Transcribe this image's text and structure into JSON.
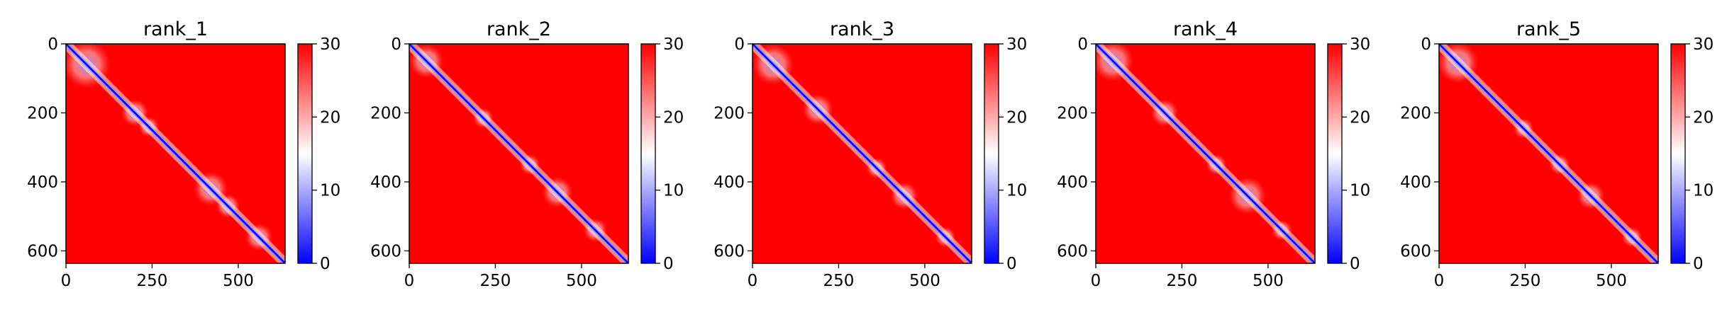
{
  "chart_data": [
    {
      "type": "heatmap",
      "title": "rank_1",
      "x_ticks": [
        0,
        250,
        500
      ],
      "y_ticks": [
        0,
        200,
        400,
        600
      ],
      "xlim": [
        0,
        636
      ],
      "ylim": [
        636,
        0
      ],
      "colorbar": {
        "ticks": [
          0,
          10,
          20,
          30
        ],
        "range": [
          0,
          30
        ],
        "colors": [
          "#0000ff",
          "#ffffff",
          "#ff0000"
        ]
      },
      "diagonal_value": 0,
      "background_value": 30,
      "low_regions": [
        [
          60,
          60,
          70
        ],
        [
          200,
          200,
          40
        ],
        [
          240,
          240,
          30
        ],
        [
          420,
          420,
          50
        ],
        [
          470,
          470,
          35
        ],
        [
          560,
          560,
          40
        ]
      ]
    },
    {
      "type": "heatmap",
      "title": "rank_2",
      "x_ticks": [
        0,
        250,
        500
      ],
      "y_ticks": [
        0,
        200,
        400,
        600
      ],
      "xlim": [
        0,
        636
      ],
      "ylim": [
        636,
        0
      ],
      "colorbar": {
        "ticks": [
          0,
          10,
          20,
          30
        ],
        "range": [
          0,
          30
        ],
        "colors": [
          "#0000ff",
          "#ffffff",
          "#ff0000"
        ]
      },
      "diagonal_value": 0,
      "background_value": 30,
      "low_regions": [
        [
          50,
          50,
          50
        ],
        [
          215,
          215,
          30
        ],
        [
          350,
          350,
          30
        ],
        [
          430,
          430,
          45
        ],
        [
          540,
          540,
          35
        ]
      ]
    },
    {
      "type": "heatmap",
      "title": "rank_3",
      "x_ticks": [
        0,
        250,
        500
      ],
      "y_ticks": [
        0,
        200,
        400,
        600
      ],
      "xlim": [
        0,
        636
      ],
      "ylim": [
        636,
        0
      ],
      "colorbar": {
        "ticks": [
          0,
          10,
          20,
          30
        ],
        "range": [
          0,
          30
        ],
        "colors": [
          "#0000ff",
          "#ffffff",
          "#ff0000"
        ]
      },
      "diagonal_value": 0,
      "background_value": 30,
      "low_regions": [
        [
          60,
          60,
          60
        ],
        [
          190,
          190,
          45
        ],
        [
          360,
          360,
          30
        ],
        [
          440,
          440,
          40
        ],
        [
          560,
          560,
          30
        ]
      ]
    },
    {
      "type": "heatmap",
      "title": "rank_4",
      "x_ticks": [
        0,
        250,
        500
      ],
      "y_ticks": [
        0,
        200,
        400,
        600
      ],
      "xlim": [
        0,
        636
      ],
      "ylim": [
        636,
        0
      ],
      "colorbar": {
        "ticks": [
          0,
          10,
          20,
          30
        ],
        "range": [
          0,
          30
        ],
        "colors": [
          "#0000ff",
          "#ffffff",
          "#ff0000"
        ]
      },
      "diagonal_value": 0,
      "background_value": 30,
      "low_regions": [
        [
          50,
          50,
          60
        ],
        [
          200,
          200,
          40
        ],
        [
          350,
          350,
          30
        ],
        [
          440,
          440,
          55
        ],
        [
          540,
          540,
          30
        ]
      ]
    },
    {
      "type": "heatmap",
      "title": "rank_5",
      "x_ticks": [
        0,
        250,
        500
      ],
      "y_ticks": [
        0,
        200,
        400,
        600
      ],
      "xlim": [
        0,
        636
      ],
      "ylim": [
        636,
        0
      ],
      "colorbar": {
        "ticks": [
          0,
          10,
          20,
          30
        ],
        "range": [
          0,
          30
        ],
        "colors": [
          "#0000ff",
          "#ffffff",
          "#ff0000"
        ]
      },
      "diagonal_value": 0,
      "background_value": 30,
      "low_regions": [
        [
          55,
          55,
          60
        ],
        [
          245,
          245,
          30
        ],
        [
          350,
          350,
          30
        ],
        [
          440,
          440,
          40
        ],
        [
          560,
          560,
          30
        ]
      ]
    }
  ]
}
